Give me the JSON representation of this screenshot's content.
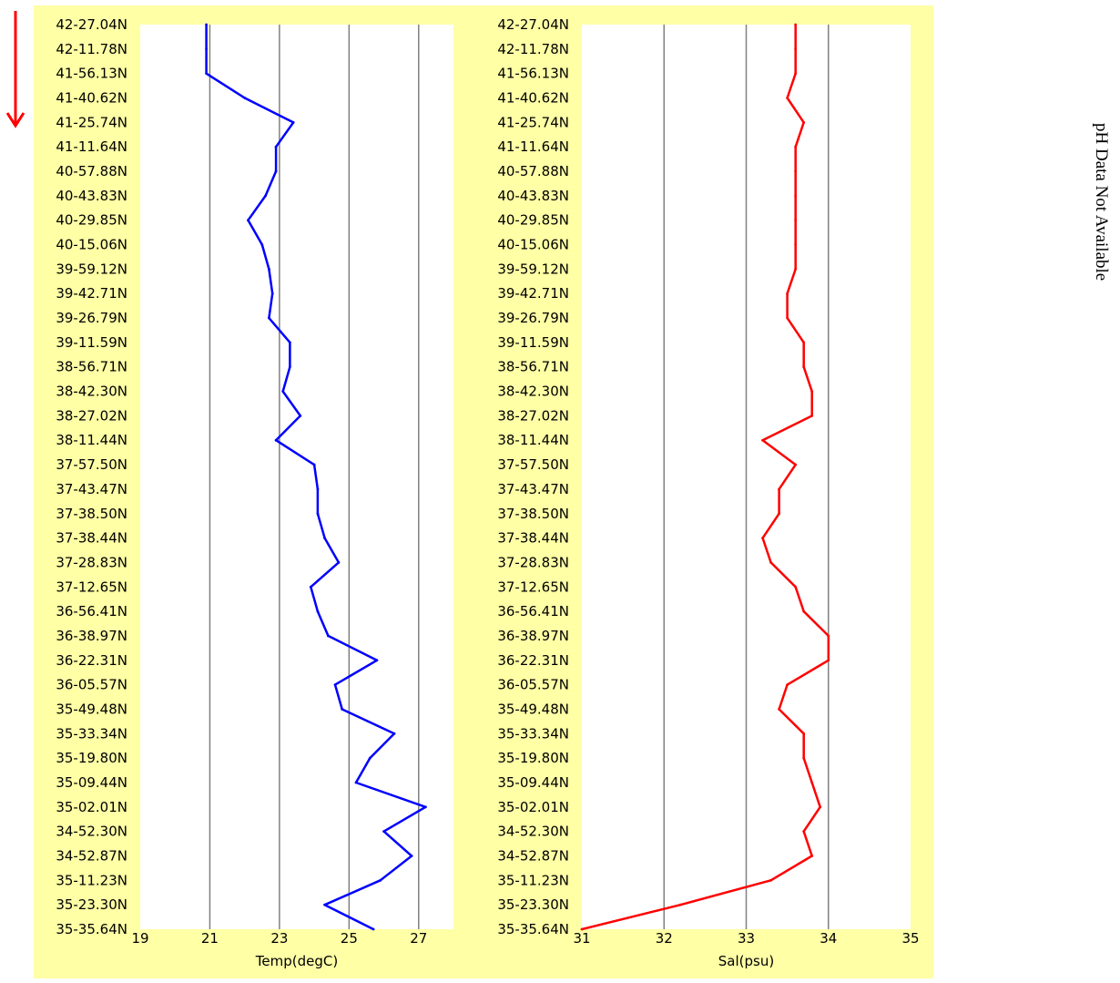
{
  "note": "pH Data Not Available",
  "arrow_color": "#ff0000",
  "panel_background": "#ffffa6",
  "chart_data": [
    {
      "type": "line",
      "title": "",
      "xlabel": "Temp(degC)",
      "ylabel": "",
      "xlim": [
        19,
        28
      ],
      "xticks": [
        19,
        21,
        23,
        25,
        27
      ],
      "grid_x": [
        21,
        23,
        25,
        27
      ],
      "grid": true,
      "color": "#0000ff",
      "categories": [
        "42-27.04N",
        "42-11.78N",
        "41-56.13N",
        "41-40.62N",
        "41-25.74N",
        "41-11.64N",
        "40-57.88N",
        "40-43.83N",
        "40-29.85N",
        "40-15.06N",
        "39-59.12N",
        "39-42.71N",
        "39-26.79N",
        "39-11.59N",
        "38-56.71N",
        "38-42.30N",
        "38-27.02N",
        "38-11.44N",
        "37-57.50N",
        "37-43.47N",
        "37-38.50N",
        "37-38.44N",
        "37-28.83N",
        "37-12.65N",
        "36-56.41N",
        "36-38.97N",
        "36-22.31N",
        "36-05.57N",
        "35-49.48N",
        "35-33.34N",
        "35-19.80N",
        "35-09.44N",
        "35-02.01N",
        "34-52.30N",
        "34-52.87N",
        "35-11.23N",
        "35-23.30N",
        "35-35.64N"
      ],
      "series": [
        {
          "values": [
            20.9,
            20.9,
            20.9,
            22.0,
            23.4,
            22.9,
            22.9,
            22.6,
            22.1,
            22.5,
            22.7,
            22.8,
            22.7,
            23.3,
            23.3,
            23.1,
            23.6,
            22.9,
            24.0,
            24.1,
            24.1,
            24.3,
            24.7,
            23.9,
            24.1,
            24.4,
            25.8,
            24.6,
            24.8,
            26.3,
            25.6,
            25.2,
            27.2,
            26.0,
            26.8,
            25.9,
            24.3,
            25.7
          ]
        }
      ]
    },
    {
      "type": "line",
      "title": "",
      "xlabel": "Sal(psu)",
      "ylabel": "",
      "xlim": [
        31,
        35
      ],
      "xticks": [
        31,
        32,
        33,
        34,
        35
      ],
      "grid_x": [
        32,
        33,
        34
      ],
      "grid": true,
      "color": "#ff0000",
      "categories": [
        "42-27.04N",
        "42-11.78N",
        "41-56.13N",
        "41-40.62N",
        "41-25.74N",
        "41-11.64N",
        "40-57.88N",
        "40-43.83N",
        "40-29.85N",
        "40-15.06N",
        "39-59.12N",
        "39-42.71N",
        "39-26.79N",
        "39-11.59N",
        "38-56.71N",
        "38-42.30N",
        "38-27.02N",
        "38-11.44N",
        "37-57.50N",
        "37-43.47N",
        "37-38.50N",
        "37-38.44N",
        "37-28.83N",
        "37-12.65N",
        "36-56.41N",
        "36-38.97N",
        "36-22.31N",
        "36-05.57N",
        "35-49.48N",
        "35-33.34N",
        "35-19.80N",
        "35-09.44N",
        "35-02.01N",
        "34-52.30N",
        "34-52.87N",
        "35-11.23N",
        "35-23.30N",
        "35-35.64N"
      ],
      "series": [
        {
          "values": [
            33.6,
            33.6,
            33.6,
            33.5,
            33.7,
            33.6,
            33.6,
            33.6,
            33.6,
            33.6,
            33.6,
            33.5,
            33.5,
            33.7,
            33.7,
            33.8,
            33.8,
            33.2,
            33.6,
            33.4,
            33.4,
            33.2,
            33.3,
            33.6,
            33.7,
            34.0,
            34.0,
            33.5,
            33.4,
            33.7,
            33.7,
            33.8,
            33.9,
            33.7,
            33.8,
            33.3,
            32.2,
            31.0
          ]
        }
      ]
    }
  ]
}
